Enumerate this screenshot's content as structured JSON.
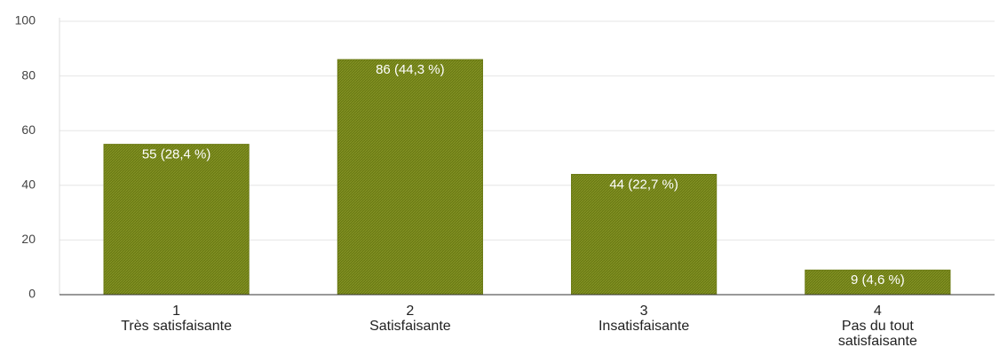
{
  "chart_data": {
    "type": "bar",
    "categories": [
      "1",
      "2",
      "3",
      "4"
    ],
    "category_labels": [
      "Très satisfaisante",
      "Satisfaisante",
      "Insatisfaisante",
      "Pas du tout satisfaisante"
    ],
    "values": [
      55,
      86,
      44,
      9
    ],
    "value_labels": [
      "55 (28,4 %)",
      "86 (44,3 %)",
      "44 (22,7 %)",
      "9 (4,6 %)"
    ],
    "color": "#6b7a14",
    "ylim": [
      0,
      100
    ],
    "yticks": [
      0,
      20,
      40,
      60,
      80,
      100
    ],
    "grid": true
  }
}
